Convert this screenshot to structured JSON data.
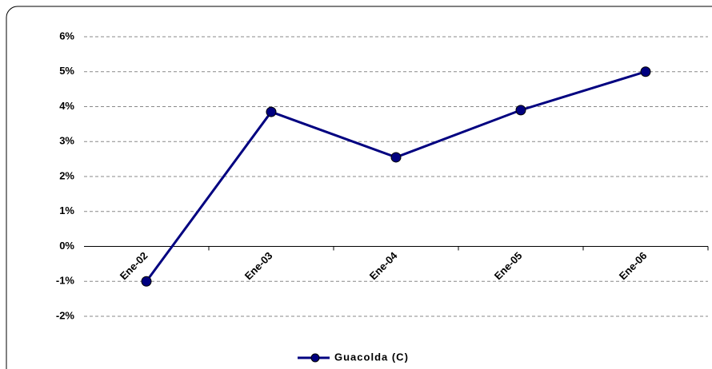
{
  "chart_data": {
    "type": "line",
    "categories": [
      "Ene-02",
      "Ene-03",
      "Ene-04",
      "Ene-05",
      "Ene-06"
    ],
    "series": [
      {
        "name": "Guacolda (C)",
        "color": "#000080",
        "values": [
          -1,
          3.85,
          2.55,
          3.9,
          5.0
        ]
      }
    ],
    "ylim": [
      -2,
      6
    ],
    "yticks": [
      {
        "value": -2,
        "label": "-2%"
      },
      {
        "value": -1,
        "label": "-1%"
      },
      {
        "value": 0,
        "label": "0%"
      },
      {
        "value": 1,
        "label": "1%"
      },
      {
        "value": 2,
        "label": "2%"
      },
      {
        "value": 3,
        "label": "3%"
      },
      {
        "value": 4,
        "label": "4%"
      },
      {
        "value": 5,
        "label": "5%"
      },
      {
        "value": 6,
        "label": "6%"
      }
    ],
    "grid": true,
    "legend": "bottom"
  }
}
